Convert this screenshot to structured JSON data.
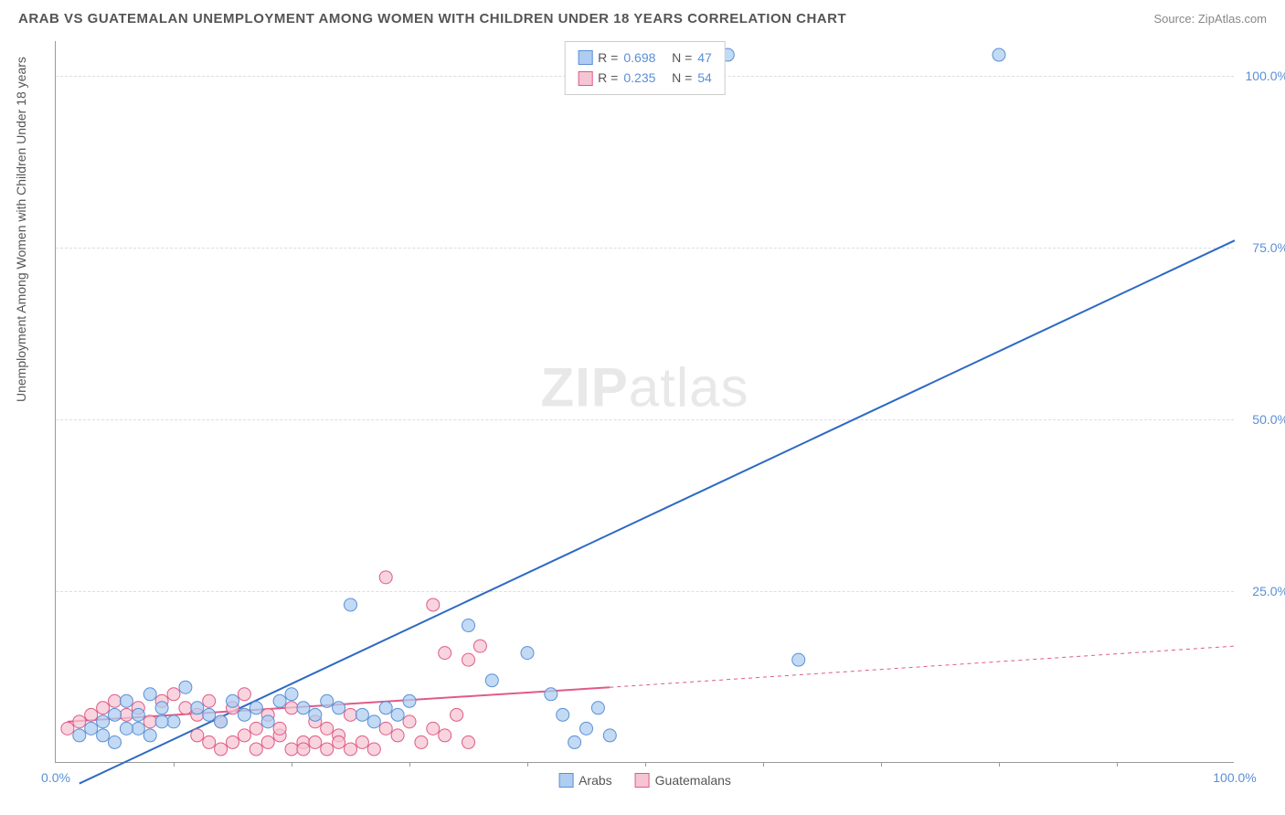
{
  "header": {
    "title": "ARAB VS GUATEMALAN UNEMPLOYMENT AMONG WOMEN WITH CHILDREN UNDER 18 YEARS CORRELATION CHART",
    "source": "Source: ZipAtlas.com"
  },
  "chart": {
    "type": "scatter",
    "y_axis_label": "Unemployment Among Women with Children Under 18 years",
    "xlim": [
      0,
      100
    ],
    "ylim": [
      0,
      105
    ],
    "x_ticks": [
      0,
      10,
      20,
      30,
      40,
      50,
      60,
      70,
      80,
      90,
      100
    ],
    "x_tick_labels": {
      "0": "0.0%",
      "100": "100.0%"
    },
    "y_ticks": [
      25,
      50,
      75,
      100
    ],
    "y_tick_labels": {
      "25": "25.0%",
      "50": "50.0%",
      "75": "75.0%",
      "100": "100.0%"
    },
    "grid_color": "#dddddd",
    "axis_color": "#999999",
    "background_color": "#ffffff",
    "tick_label_color": "#5b8fd6",
    "watermark": {
      "text_bold": "ZIP",
      "text_light": "atlas",
      "color": "#e8e8e8",
      "fontsize": 60
    },
    "series": [
      {
        "name": "Arabs",
        "marker_fill": "#aecdf0",
        "marker_stroke": "#5b8fd6",
        "marker_opacity": 0.75,
        "marker_radius": 7,
        "line_color": "#2d69c4",
        "line_width": 2,
        "R": "0.698",
        "N": "47",
        "trend": {
          "x1": 2,
          "y1": -3,
          "x2": 100,
          "y2": 76
        },
        "trend_dash_from_x": 100,
        "points": [
          [
            57,
            103
          ],
          [
            80,
            103
          ],
          [
            25,
            23
          ],
          [
            35,
            20
          ],
          [
            40,
            16
          ],
          [
            37,
            12
          ],
          [
            63,
            15
          ],
          [
            4,
            6
          ],
          [
            5,
            7
          ],
          [
            6,
            9
          ],
          [
            7,
            5
          ],
          [
            8,
            10
          ],
          [
            9,
            8
          ],
          [
            10,
            6
          ],
          [
            11,
            11
          ],
          [
            2,
            4
          ],
          [
            3,
            5
          ],
          [
            4,
            4
          ],
          [
            5,
            3
          ],
          [
            6,
            5
          ],
          [
            7,
            7
          ],
          [
            8,
            4
          ],
          [
            9,
            6
          ],
          [
            12,
            8
          ],
          [
            13,
            7
          ],
          [
            14,
            6
          ],
          [
            15,
            9
          ],
          [
            16,
            7
          ],
          [
            17,
            8
          ],
          [
            18,
            6
          ],
          [
            19,
            9
          ],
          [
            20,
            10
          ],
          [
            21,
            8
          ],
          [
            22,
            7
          ],
          [
            23,
            9
          ],
          [
            24,
            8
          ],
          [
            26,
            7
          ],
          [
            27,
            6
          ],
          [
            28,
            8
          ],
          [
            29,
            7
          ],
          [
            30,
            9
          ],
          [
            42,
            10
          ],
          [
            43,
            7
          ],
          [
            44,
            3
          ],
          [
            45,
            5
          ],
          [
            46,
            8
          ],
          [
            47,
            4
          ]
        ]
      },
      {
        "name": "Guatemans",
        "label": "Guatemalans",
        "marker_fill": "#f6c5d3",
        "marker_stroke": "#e05a87",
        "marker_opacity": 0.75,
        "marker_radius": 7,
        "line_color": "#e05a87",
        "line_width": 2,
        "R": "0.235",
        "N": "54",
        "trend": {
          "x1": 1,
          "y1": 6,
          "x2": 47,
          "y2": 11
        },
        "trend_dash": {
          "x1": 47,
          "y1": 11,
          "x2": 100,
          "y2": 17
        },
        "points": [
          [
            28,
            27
          ],
          [
            32,
            23
          ],
          [
            33,
            16
          ],
          [
            35,
            15
          ],
          [
            36,
            17
          ],
          [
            1,
            5
          ],
          [
            2,
            6
          ],
          [
            3,
            7
          ],
          [
            4,
            8
          ],
          [
            5,
            9
          ],
          [
            6,
            7
          ],
          [
            7,
            8
          ],
          [
            8,
            6
          ],
          [
            9,
            9
          ],
          [
            10,
            10
          ],
          [
            11,
            8
          ],
          [
            12,
            7
          ],
          [
            13,
            9
          ],
          [
            14,
            6
          ],
          [
            15,
            8
          ],
          [
            16,
            10
          ],
          [
            17,
            5
          ],
          [
            18,
            7
          ],
          [
            19,
            4
          ],
          [
            20,
            8
          ],
          [
            21,
            3
          ],
          [
            22,
            6
          ],
          [
            23,
            5
          ],
          [
            24,
            4
          ],
          [
            25,
            7
          ],
          [
            26,
            3
          ],
          [
            27,
            2
          ],
          [
            28,
            5
          ],
          [
            29,
            4
          ],
          [
            30,
            6
          ],
          [
            31,
            3
          ],
          [
            32,
            5
          ],
          [
            33,
            4
          ],
          [
            34,
            7
          ],
          [
            35,
            3
          ],
          [
            20,
            2
          ],
          [
            21,
            2
          ],
          [
            22,
            3
          ],
          [
            23,
            2
          ],
          [
            24,
            3
          ],
          [
            25,
            2
          ],
          [
            15,
            3
          ],
          [
            16,
            4
          ],
          [
            17,
            2
          ],
          [
            18,
            3
          ],
          [
            19,
            5
          ],
          [
            14,
            2
          ],
          [
            13,
            3
          ],
          [
            12,
            4
          ]
        ]
      }
    ],
    "bottom_legend": [
      {
        "label": "Arabs",
        "fill": "#aecdf0",
        "stroke": "#5b8fd6"
      },
      {
        "label": "Guatemalans",
        "fill": "#f6c5d3",
        "stroke": "#e05a87"
      }
    ]
  }
}
